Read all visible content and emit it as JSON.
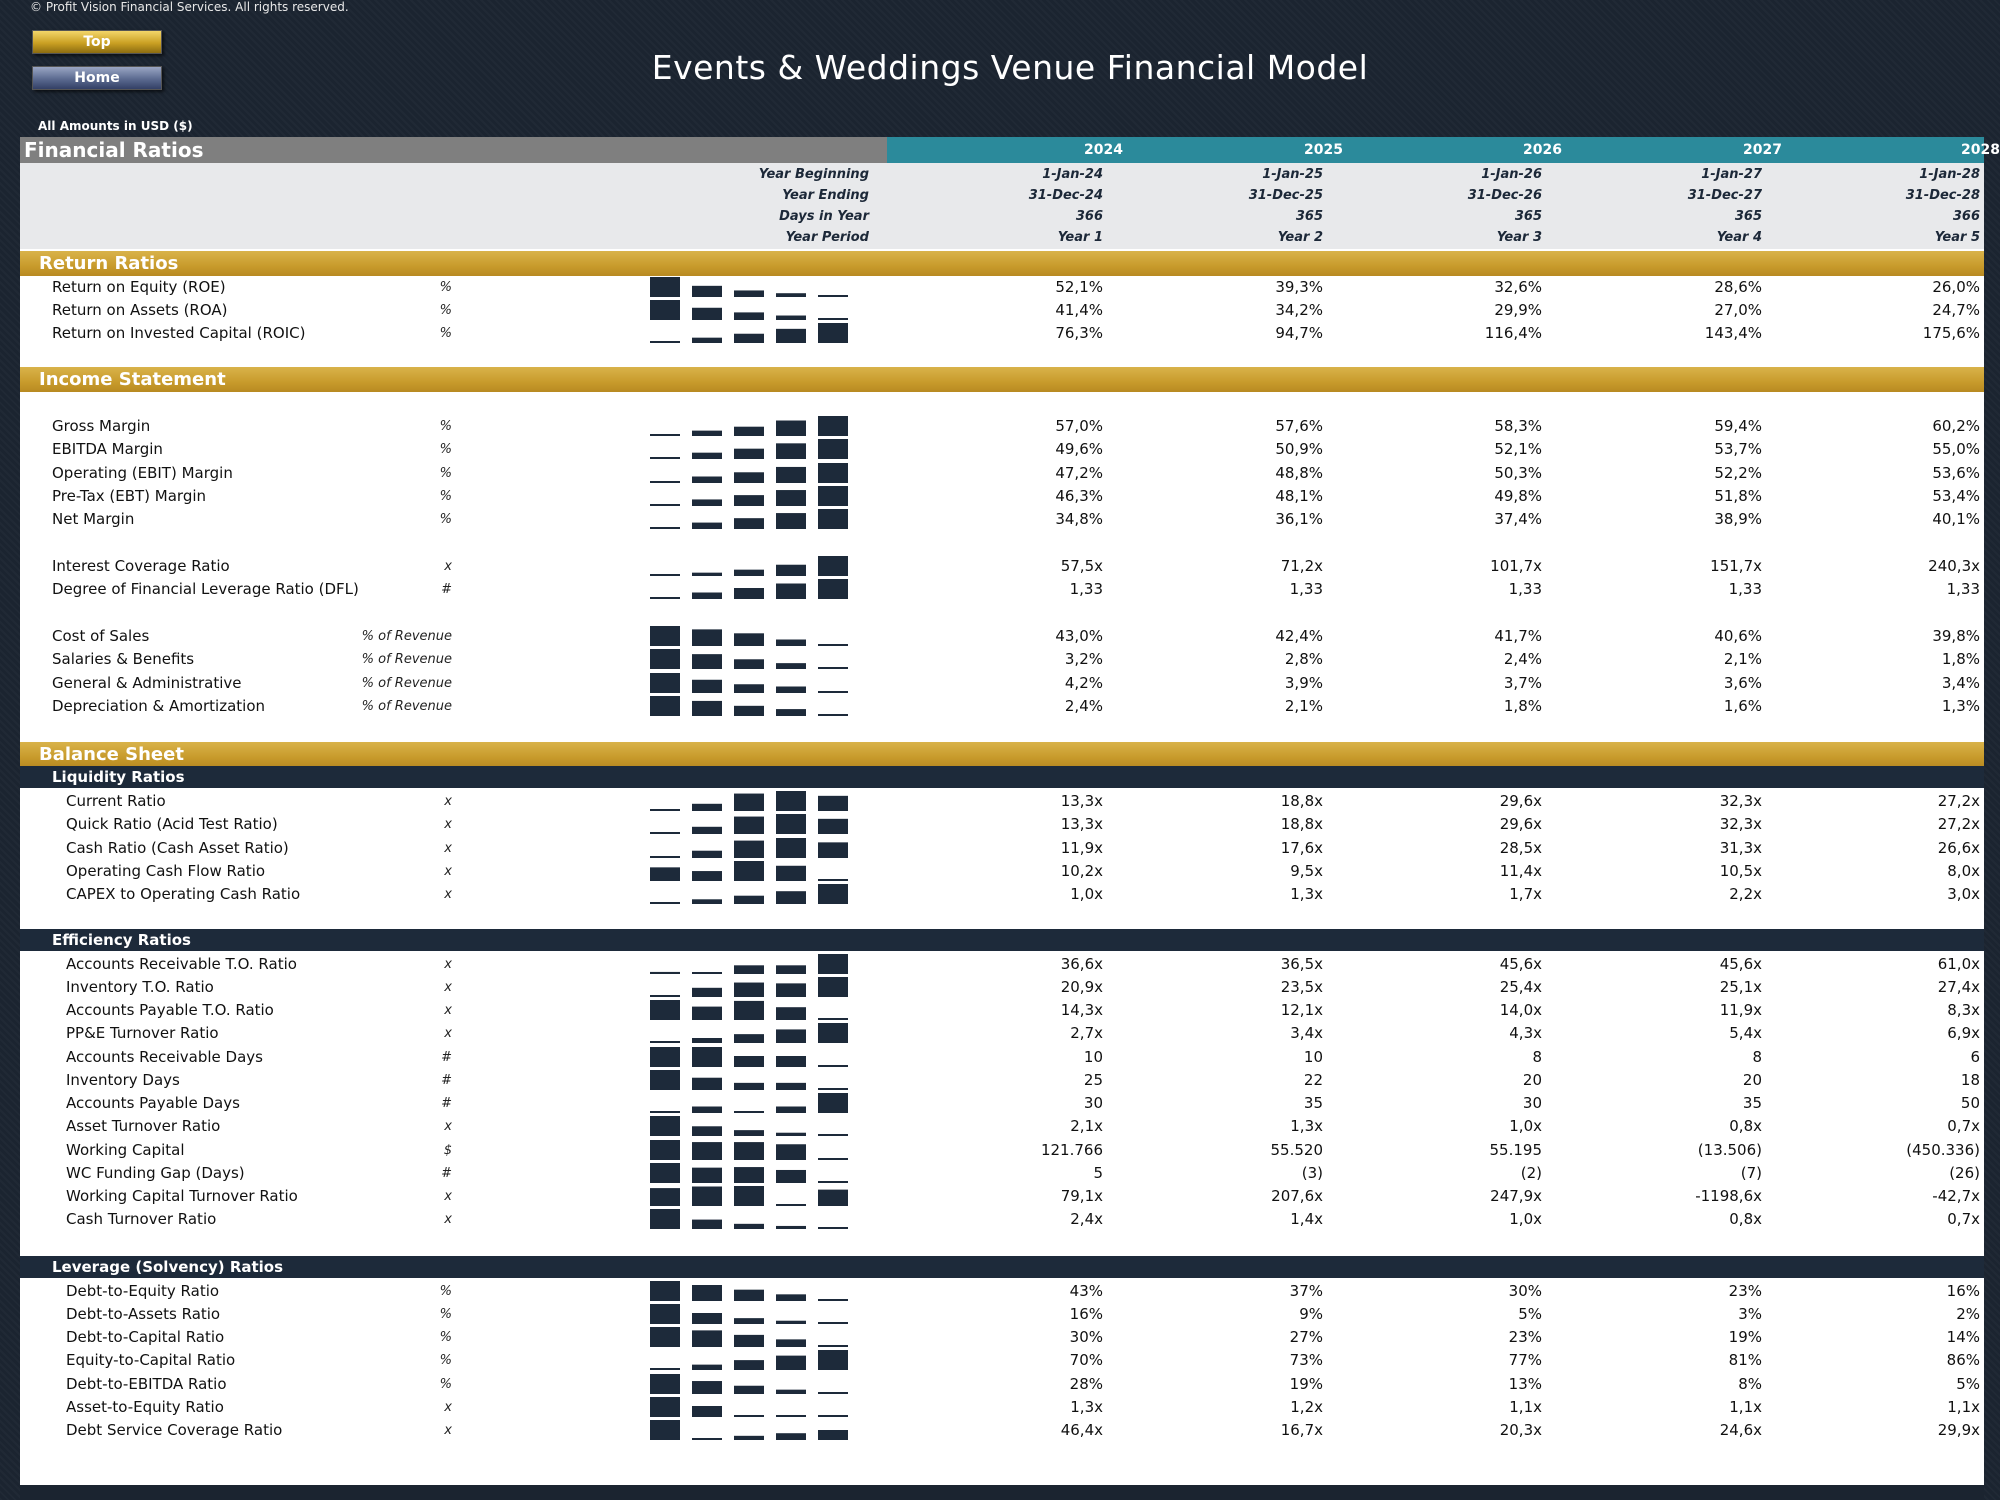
{
  "copyright": "© Profit Vision Financial Services. All rights reserved.",
  "nav": {
    "top_label": "Top",
    "home_label": "Home"
  },
  "title": "Events & Weddings Venue Financial Model",
  "amounts_label": "All Amounts in  USD ($)",
  "section_title": "Financial Ratios",
  "years": [
    "2024",
    "2025",
    "2026",
    "2027",
    "2028"
  ],
  "meta": [
    {
      "label": "Year Beginning",
      "values": [
        "1-Jan-24",
        "1-Jan-25",
        "1-Jan-26",
        "1-Jan-27",
        "1-Jan-28"
      ]
    },
    {
      "label": "Year Ending",
      "values": [
        "31-Dec-24",
        "31-Dec-25",
        "31-Dec-26",
        "31-Dec-27",
        "31-Dec-28"
      ]
    },
    {
      "label": "Days in Year",
      "values": [
        "366",
        "365",
        "365",
        "365",
        "366"
      ]
    },
    {
      "label": "Year Period",
      "values": [
        "Year 1",
        "Year 2",
        "Year 3",
        "Year 4",
        "Year 5"
      ]
    }
  ],
  "colors": {
    "navy": "#1d2a3a",
    "gold": "#c89b2c",
    "teal": "#2b8a9b",
    "gray": "#7f7f7f",
    "spark": "#1d2a3a"
  },
  "sections": [
    {
      "type": "gold",
      "title": "Return Ratios"
    },
    {
      "type": "row",
      "label": "Return on Equity (ROE)",
      "unit": "%",
      "indent": 0,
      "values": [
        "52,1%",
        "39,3%",
        "32,6%",
        "28,6%",
        "26,0%"
      ],
      "spark": [
        52.1,
        39.3,
        32.6,
        28.6,
        26.0
      ]
    },
    {
      "type": "row",
      "label": "Return on Assets (ROA)",
      "unit": "%",
      "indent": 0,
      "values": [
        "41,4%",
        "34,2%",
        "29,9%",
        "27,0%",
        "24,7%"
      ],
      "spark": [
        41.4,
        34.2,
        29.9,
        27.0,
        24.7
      ]
    },
    {
      "type": "row",
      "label": "Return on Invested Capital (ROIC)",
      "unit": "%",
      "indent": 0,
      "values": [
        "76,3%",
        "94,7%",
        "116,4%",
        "143,4%",
        "175,6%"
      ],
      "spark": [
        76.3,
        94.7,
        116.4,
        143.4,
        175.6
      ]
    },
    {
      "type": "gold",
      "title": "Income Statement"
    },
    {
      "type": "row",
      "label": "Gross Margin",
      "unit": "%",
      "indent": 0,
      "values": [
        "57,0%",
        "57,6%",
        "58,3%",
        "59,4%",
        "60,2%"
      ],
      "spark": [
        57.0,
        57.6,
        58.3,
        59.4,
        60.2
      ]
    },
    {
      "type": "row",
      "label": "EBITDA Margin",
      "unit": "%",
      "indent": 0,
      "values": [
        "49,6%",
        "50,9%",
        "52,1%",
        "53,7%",
        "55,0%"
      ],
      "spark": [
        49.6,
        50.9,
        52.1,
        53.7,
        55.0
      ]
    },
    {
      "type": "row",
      "label": "Operating (EBIT) Margin",
      "unit": "%",
      "indent": 0,
      "values": [
        "47,2%",
        "48,8%",
        "50,3%",
        "52,2%",
        "53,6%"
      ],
      "spark": [
        47.2,
        48.8,
        50.3,
        52.2,
        53.6
      ]
    },
    {
      "type": "row",
      "label": "Pre-Tax (EBT) Margin",
      "unit": "%",
      "indent": 0,
      "values": [
        "46,3%",
        "48,1%",
        "49,8%",
        "51,8%",
        "53,4%"
      ],
      "spark": [
        46.3,
        48.1,
        49.8,
        51.8,
        53.4
      ]
    },
    {
      "type": "row",
      "label": "Net Margin",
      "unit": "%",
      "indent": 0,
      "values": [
        "34,8%",
        "36,1%",
        "37,4%",
        "38,9%",
        "40,1%"
      ],
      "spark": [
        34.8,
        36.1,
        37.4,
        38.9,
        40.1
      ]
    },
    {
      "type": "row",
      "label": "Interest Coverage Ratio",
      "unit": "x",
      "indent": 0,
      "values": [
        "57,5x",
        "71,2x",
        "101,7x",
        "151,7x",
        "240,3x"
      ],
      "spark": [
        57.5,
        71.2,
        101.7,
        151.7,
        240.3
      ]
    },
    {
      "type": "row",
      "label": "Degree of Financial Leverage Ratio (DFL)",
      "unit": "#",
      "indent": 0,
      "values": [
        "1,33",
        "1,33",
        "1,33",
        "1,33",
        "1,33"
      ],
      "spark": [
        1.325,
        1.327,
        1.329,
        1.331,
        1.333
      ]
    },
    {
      "type": "row",
      "label": "Cost of Sales",
      "unit": "% of Revenue",
      "indent": 0,
      "values": [
        "43,0%",
        "42,4%",
        "41,7%",
        "40,6%",
        "39,8%"
      ],
      "spark": [
        43.0,
        42.4,
        41.7,
        40.6,
        39.8
      ]
    },
    {
      "type": "row",
      "label": "Salaries & Benefits",
      "unit": "% of Revenue",
      "indent": 0,
      "values": [
        "3,2%",
        "2,8%",
        "2,4%",
        "2,1%",
        "1,8%"
      ],
      "spark": [
        3.2,
        2.8,
        2.4,
        2.1,
        1.8
      ]
    },
    {
      "type": "row",
      "label": "General & Administrative",
      "unit": "% of Revenue",
      "indent": 0,
      "values": [
        "4,2%",
        "3,9%",
        "3,7%",
        "3,6%",
        "3,4%"
      ],
      "spark": [
        4.2,
        3.9,
        3.7,
        3.6,
        3.4
      ]
    },
    {
      "type": "row",
      "label": "Depreciation & Amortization",
      "unit": "% of Revenue",
      "indent": 0,
      "values": [
        "2,4%",
        "2,1%",
        "1,8%",
        "1,6%",
        "1,3%"
      ],
      "spark": [
        2.4,
        2.1,
        1.8,
        1.6,
        1.3
      ]
    },
    {
      "type": "gold",
      "title": "Balance Sheet"
    },
    {
      "type": "navy",
      "title": "Liquidity Ratios"
    },
    {
      "type": "row",
      "label": "Current Ratio",
      "unit": "x",
      "indent": 1,
      "values": [
        "13,3x",
        "18,8x",
        "29,6x",
        "32,3x",
        "27,2x"
      ],
      "spark": [
        13.3,
        18.8,
        29.6,
        32.3,
        27.2
      ]
    },
    {
      "type": "row",
      "label": "Quick Ratio (Acid Test Ratio)",
      "unit": "x",
      "indent": 1,
      "values": [
        "13,3x",
        "18,8x",
        "29,6x",
        "32,3x",
        "27,2x"
      ],
      "spark": [
        13.3,
        18.8,
        29.6,
        32.3,
        27.2
      ]
    },
    {
      "type": "row",
      "label": "Cash Ratio (Cash Asset Ratio)",
      "unit": "x",
      "indent": 1,
      "values": [
        "11,9x",
        "17,6x",
        "28,5x",
        "31,3x",
        "26,6x"
      ],
      "spark": [
        11.9,
        17.6,
        28.5,
        31.3,
        26.6
      ]
    },
    {
      "type": "row",
      "label": "Operating Cash Flow Ratio",
      "unit": "x",
      "indent": 1,
      "values": [
        "10,2x",
        "9,5x",
        "11,4x",
        "10,5x",
        "8,0x"
      ],
      "spark": [
        10.2,
        9.5,
        11.4,
        10.5,
        8.0
      ]
    },
    {
      "type": "row",
      "label": "CAPEX to Operating Cash Ratio",
      "unit": "x",
      "indent": 1,
      "values": [
        "1,0x",
        "1,3x",
        "1,7x",
        "2,2x",
        "3,0x"
      ],
      "spark": [
        1.0,
        1.3,
        1.7,
        2.2,
        3.0
      ]
    },
    {
      "type": "navy",
      "title": "Efficiency Ratios"
    },
    {
      "type": "row",
      "label": "Accounts Receivable T.O. Ratio",
      "unit": "x",
      "indent": 1,
      "values": [
        "36,6x",
        "36,5x",
        "45,6x",
        "45,6x",
        "61,0x"
      ],
      "spark": [
        36.6,
        36.5,
        45.6,
        45.6,
        61.0
      ]
    },
    {
      "type": "row",
      "label": "Inventory T.O. Ratio",
      "unit": "x",
      "indent": 1,
      "values": [
        "20,9x",
        "23,5x",
        "25,4x",
        "25,1x",
        "27,4x"
      ],
      "spark": [
        20.9,
        23.5,
        25.4,
        25.1,
        27.4
      ]
    },
    {
      "type": "row",
      "label": "Accounts Payable T.O. Ratio",
      "unit": "x",
      "indent": 1,
      "values": [
        "14,3x",
        "12,1x",
        "14,0x",
        "11,9x",
        "8,3x"
      ],
      "spark": [
        14.3,
        12.1,
        14.0,
        11.9,
        8.3
      ]
    },
    {
      "type": "row",
      "label": "PP&E Turnover Ratio",
      "unit": "x",
      "indent": 1,
      "values": [
        "2,7x",
        "3,4x",
        "4,3x",
        "5,4x",
        "6,9x"
      ],
      "spark": [
        2.7,
        3.4,
        4.3,
        5.4,
        6.9
      ]
    },
    {
      "type": "row",
      "label": "Accounts Receivable Days",
      "unit": "#",
      "indent": 1,
      "values": [
        "10",
        "10",
        "8",
        "8",
        "6"
      ],
      "spark": [
        10,
        10,
        8,
        8,
        6
      ]
    },
    {
      "type": "row",
      "label": "Inventory Days",
      "unit": "#",
      "indent": 1,
      "values": [
        "25",
        "22",
        "20",
        "20",
        "18"
      ],
      "spark": [
        25,
        22,
        20,
        20,
        18
      ]
    },
    {
      "type": "row",
      "label": "Accounts Payable Days",
      "unit": "#",
      "indent": 1,
      "values": [
        "30",
        "35",
        "30",
        "35",
        "50"
      ],
      "spark": [
        30,
        35,
        30,
        35,
        50
      ]
    },
    {
      "type": "row",
      "label": "Asset Turnover Ratio",
      "unit": "x",
      "indent": 1,
      "values": [
        "2,1x",
        "1,3x",
        "1,0x",
        "0,8x",
        "0,7x"
      ],
      "spark": [
        2.1,
        1.3,
        1.0,
        0.8,
        0.7
      ]
    },
    {
      "type": "row",
      "label": "Working Capital",
      "unit": "$",
      "indent": 1,
      "values": [
        "121.766",
        "55.520",
        "55.195",
        "(13.506)",
        "(450.336)"
      ],
      "spark": [
        121766,
        55520,
        55195,
        -13506,
        -450336
      ]
    },
    {
      "type": "row",
      "label": "WC Funding Gap (Days)",
      "unit": "#",
      "indent": 1,
      "values": [
        "5",
        "(3)",
        "(2)",
        "(7)",
        "(26)"
      ],
      "spark": [
        5,
        -3,
        -2,
        -7,
        -26
      ]
    },
    {
      "type": "row",
      "label": "Working Capital Turnover Ratio",
      "unit": "x",
      "indent": 1,
      "values": [
        "79,1x",
        "207,6x",
        "247,9x",
        "-1198,6x",
        "-42,7x"
      ],
      "spark": [
        79.1,
        207.6,
        247.9,
        -1198.6,
        -42.7
      ]
    },
    {
      "type": "row",
      "label": "Cash Turnover Ratio",
      "unit": "x",
      "indent": 1,
      "values": [
        "2,4x",
        "1,4x",
        "1,0x",
        "0,8x",
        "0,7x"
      ],
      "spark": [
        2.4,
        1.4,
        1.0,
        0.8,
        0.7
      ]
    },
    {
      "type": "navy",
      "title": "Leverage (Solvency) Ratios"
    },
    {
      "type": "row",
      "label": "Debt-to-Equity Ratio",
      "unit": "%",
      "indent": 1,
      "values": [
        "43%",
        "37%",
        "30%",
        "23%",
        "16%"
      ],
      "spark": [
        43,
        37,
        30,
        23,
        16
      ]
    },
    {
      "type": "row",
      "label": "Debt-to-Assets Ratio",
      "unit": "%",
      "indent": 1,
      "values": [
        "16%",
        "9%",
        "5%",
        "3%",
        "2%"
      ],
      "spark": [
        16,
        9,
        5,
        3,
        2
      ]
    },
    {
      "type": "row",
      "label": "Debt-to-Capital Ratio",
      "unit": "%",
      "indent": 1,
      "values": [
        "30%",
        "27%",
        "23%",
        "19%",
        "14%"
      ],
      "spark": [
        30,
        27,
        23,
        19,
        14
      ]
    },
    {
      "type": "row",
      "label": "Equity-to-Capital Ratio",
      "unit": "%",
      "indent": 1,
      "values": [
        "70%",
        "73%",
        "77%",
        "81%",
        "86%"
      ],
      "spark": [
        70,
        73,
        77,
        81,
        86
      ]
    },
    {
      "type": "row",
      "label": "Debt-to-EBITDA Ratio",
      "unit": "%",
      "indent": 1,
      "values": [
        "28%",
        "19%",
        "13%",
        "8%",
        "5%"
      ],
      "spark": [
        28,
        19,
        13,
        8,
        5
      ]
    },
    {
      "type": "row",
      "label": "Asset-to-Equity Ratio",
      "unit": "x",
      "indent": 1,
      "values": [
        "1,3x",
        "1,2x",
        "1,1x",
        "1,1x",
        "1,1x"
      ],
      "spark": [
        1.3,
        1.2,
        1.1,
        1.1,
        1.1
      ]
    },
    {
      "type": "row",
      "label": "Debt Service Coverage Ratio",
      "unit": "x",
      "indent": 1,
      "values": [
        "46,4x",
        "16,7x",
        "20,3x",
        "24,6x",
        "29,9x"
      ],
      "spark": [
        46.4,
        16.7,
        20.3,
        24.6,
        29.9
      ]
    }
  ]
}
